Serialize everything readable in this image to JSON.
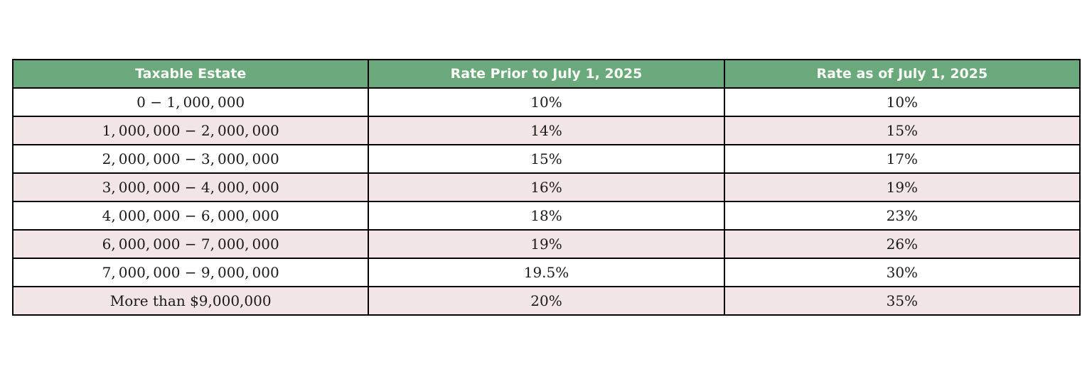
{
  "chart_data": {
    "type": "table",
    "columns": [
      "Taxable Estate",
      "Rate Prior to July 1, 2025",
      "Rate as of July 1, 2025"
    ],
    "rows": [
      [
        "0 − 1, 000, 000",
        "10%",
        "10%"
      ],
      [
        "1, 000, 000 − 2, 000, 000",
        "14%",
        "15%"
      ],
      [
        "2, 000, 000 − 3, 000, 000",
        "15%",
        "17%"
      ],
      [
        "3, 000, 000 − 4, 000, 000",
        "16%",
        "19%"
      ],
      [
        "4, 000, 000 − 6, 000, 000",
        "18%",
        "23%"
      ],
      [
        "6, 000, 000 − 7, 000, 000",
        "19%",
        "26%"
      ],
      [
        "7, 000, 000 − 9, 000, 000",
        "19.5%",
        "30%"
      ],
      [
        "More than $9,000,000",
        "20%",
        "35%"
      ]
    ],
    "title": "",
    "layout": {
      "grid": "full-borders",
      "header_style": "green-banner",
      "row_striping": "white-pink-alternating"
    }
  },
  "colors": {
    "header_bg": "#6aa97c",
    "header_text": "#fafdf7",
    "row_bg": "#ffffff",
    "row_alt_bg": "#f2e5e5",
    "border": "#000000",
    "body_text": "#1a1a1a"
  }
}
